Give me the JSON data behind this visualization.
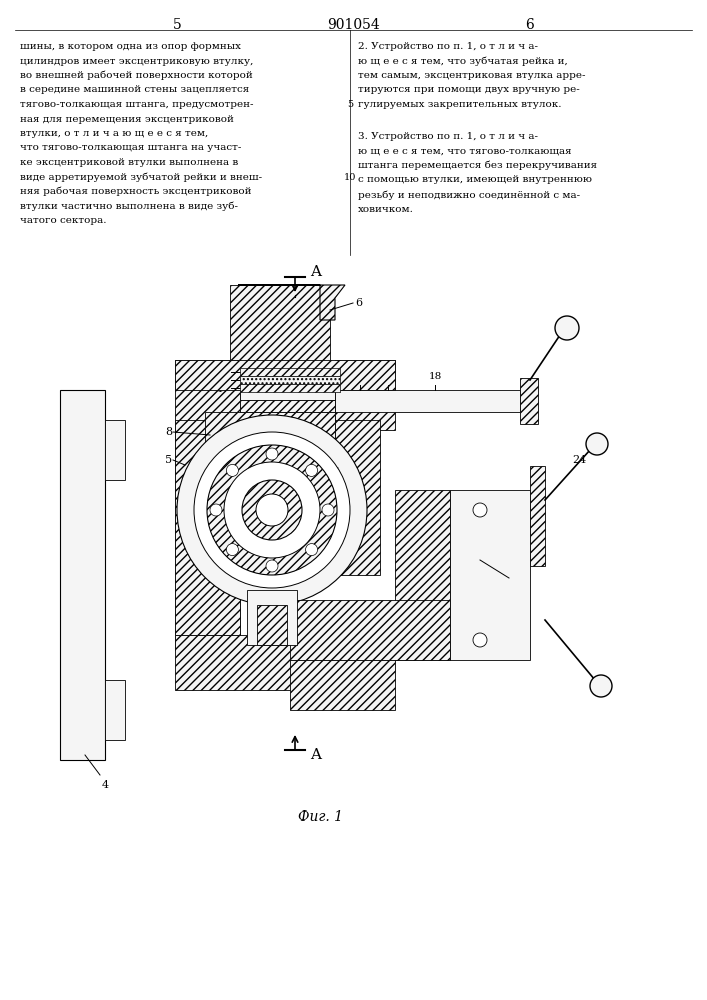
{
  "page_number_left": "5",
  "page_number_center": "901054",
  "page_number_right": "6",
  "left_column_text": [
    "шины, в котором одна из опор формных",
    "цилиндров имеет эксцентриковую втулку,",
    "во внешней рабочей поверхности которой",
    "в середине машинной стены зацепляется",
    "тягово-толкающая штанга, предусмотрен-",
    "ная для перемещения эксцентриковой",
    "втулки, о т л и ч а ю щ е е с я тем,",
    "что тягово-толкающая штанга на участ-",
    "ке эксцентриковой втулки выполнена в",
    "виде арретируемой зубчатой рейки и внеш-",
    "няя рабочая поверхность эксцентриковой",
    "втулки частично выполнена в виде зуб-",
    "чатого сектора."
  ],
  "right_column_text_block1": [
    "2. Устройство по п. 1, о т л и ч а-",
    "ю щ е е с я тем, что зубчатая рейка и,",
    "тем самым, эксцентриковая втулка арре-",
    "тируются при помощи двух вручную ре-",
    "гулируемых закрепительных втулок."
  ],
  "right_column_text_block2": [
    "3. Устройство по п. 1, о т л и ч а-",
    "ю щ е е с я тем, что тягово-толкающая",
    "штанга перемещается без перекручивания",
    "с помощью втулки, имеющей внутреннюю",
    "резьбу и неподвижно соединённой с ма-",
    "ховичком."
  ],
  "line_number_5": "5",
  "line_number_10": "10",
  "fig_label": "Фиг. 1",
  "background_color": "#ffffff",
  "text_color": "#000000"
}
